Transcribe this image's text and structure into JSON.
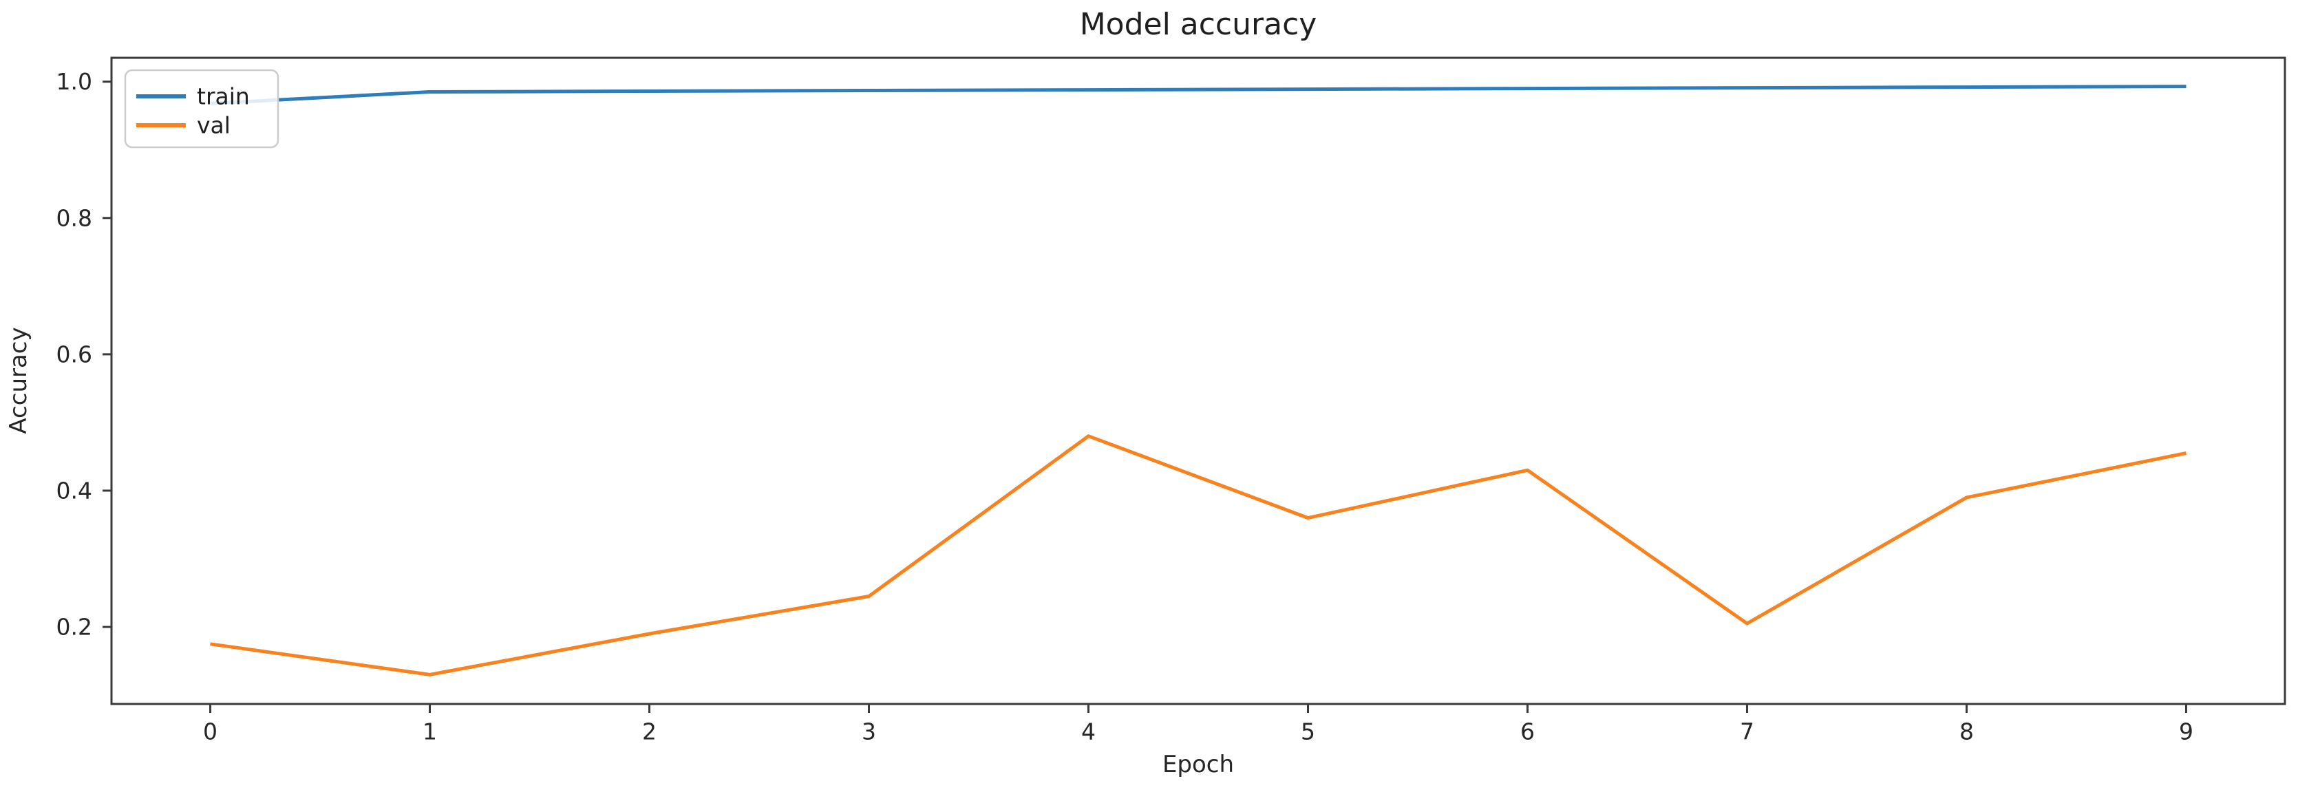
{
  "chart_data": {
    "type": "line",
    "title": "Model accuracy",
    "xlabel": "Epoch",
    "ylabel": "Accuracy",
    "x": [
      0,
      1,
      2,
      3,
      4,
      5,
      6,
      7,
      8,
      9
    ],
    "series": [
      {
        "name": "train",
        "color": "#2e7db8",
        "values": [
          0.968,
          0.985,
          0.986,
          0.987,
          0.988,
          0.989,
          0.99,
          0.991,
          0.992,
          0.993
        ]
      },
      {
        "name": "val",
        "color": "#f8821e",
        "values": [
          0.175,
          0.13,
          0.19,
          0.245,
          0.48,
          0.36,
          0.43,
          0.205,
          0.39,
          0.455
        ]
      }
    ],
    "xlim": [
      -0.45,
      9.45
    ],
    "ylim": [
      0.087,
      1.035
    ],
    "xticks": [
      0,
      1,
      2,
      3,
      4,
      5,
      6,
      7,
      8,
      9
    ],
    "xtick_labels": [
      "0",
      "1",
      "2",
      "3",
      "4",
      "5",
      "6",
      "7",
      "8",
      "9"
    ],
    "yticks": [
      0.2,
      0.4,
      0.6,
      0.8,
      1.0
    ],
    "ytick_labels": [
      "0.2",
      "0.4",
      "0.6",
      "0.8",
      "1.0"
    ],
    "grid": false,
    "legend": {
      "position": "upper left",
      "entries": [
        "train",
        "val"
      ]
    },
    "colors": {
      "spine": "#3a3a3a",
      "tick": "#3a3a3a",
      "text": "#262626",
      "legend_border": "#cccccc",
      "background": "#ffffff"
    }
  }
}
